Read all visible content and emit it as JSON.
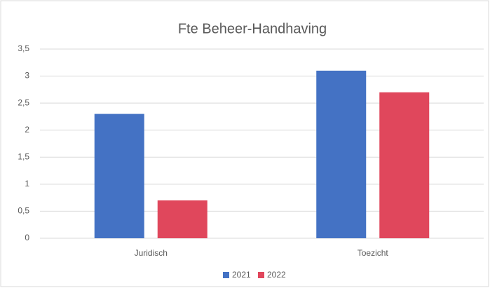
{
  "chart_data": {
    "type": "bar",
    "title": "Fte Beheer-Handhaving",
    "categories": [
      "Juridisch",
      "Toezicht"
    ],
    "series": [
      {
        "name": "2021",
        "color": "#4472c4",
        "values": [
          2.3,
          3.1
        ]
      },
      {
        "name": "2022",
        "color": "#e0475c",
        "values": [
          0.7,
          2.7
        ]
      }
    ],
    "ylim": [
      0,
      3.5
    ],
    "yticks": [
      0,
      {
        "value": 0.5,
        "label": "0,5"
      },
      1,
      {
        "value": 1.5,
        "label": "1,5"
      },
      2,
      {
        "value": 2.5,
        "label": "2,5"
      },
      3,
      {
        "value": 3.5,
        "label": "3,5"
      }
    ],
    "grid": true,
    "legend": "bottom"
  }
}
